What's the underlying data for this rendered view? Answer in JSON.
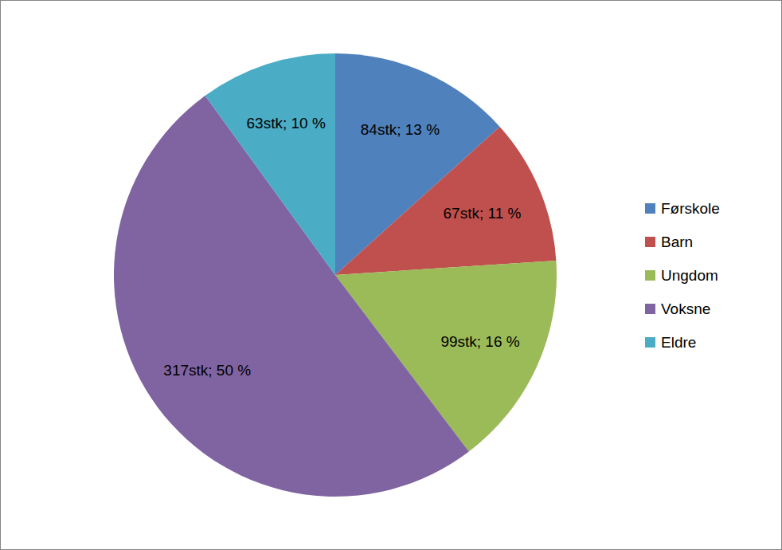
{
  "chart_data": {
    "type": "pie",
    "categories": [
      "Førskole",
      "Barn",
      "Ungdom",
      "Voksne",
      "Eldre"
    ],
    "values": [
      84,
      67,
      99,
      317,
      63
    ],
    "value_labels": [
      "84stk; 13 %",
      "67stk; 11 %",
      "99stk; 16 %",
      "317stk; 50 %",
      "63stk; 10 %"
    ],
    "colors": [
      "#4f81bd",
      "#c0504d",
      "#9bbb59",
      "#8064a2",
      "#4bacc6"
    ],
    "data_labels": true,
    "legend": "right"
  }
}
